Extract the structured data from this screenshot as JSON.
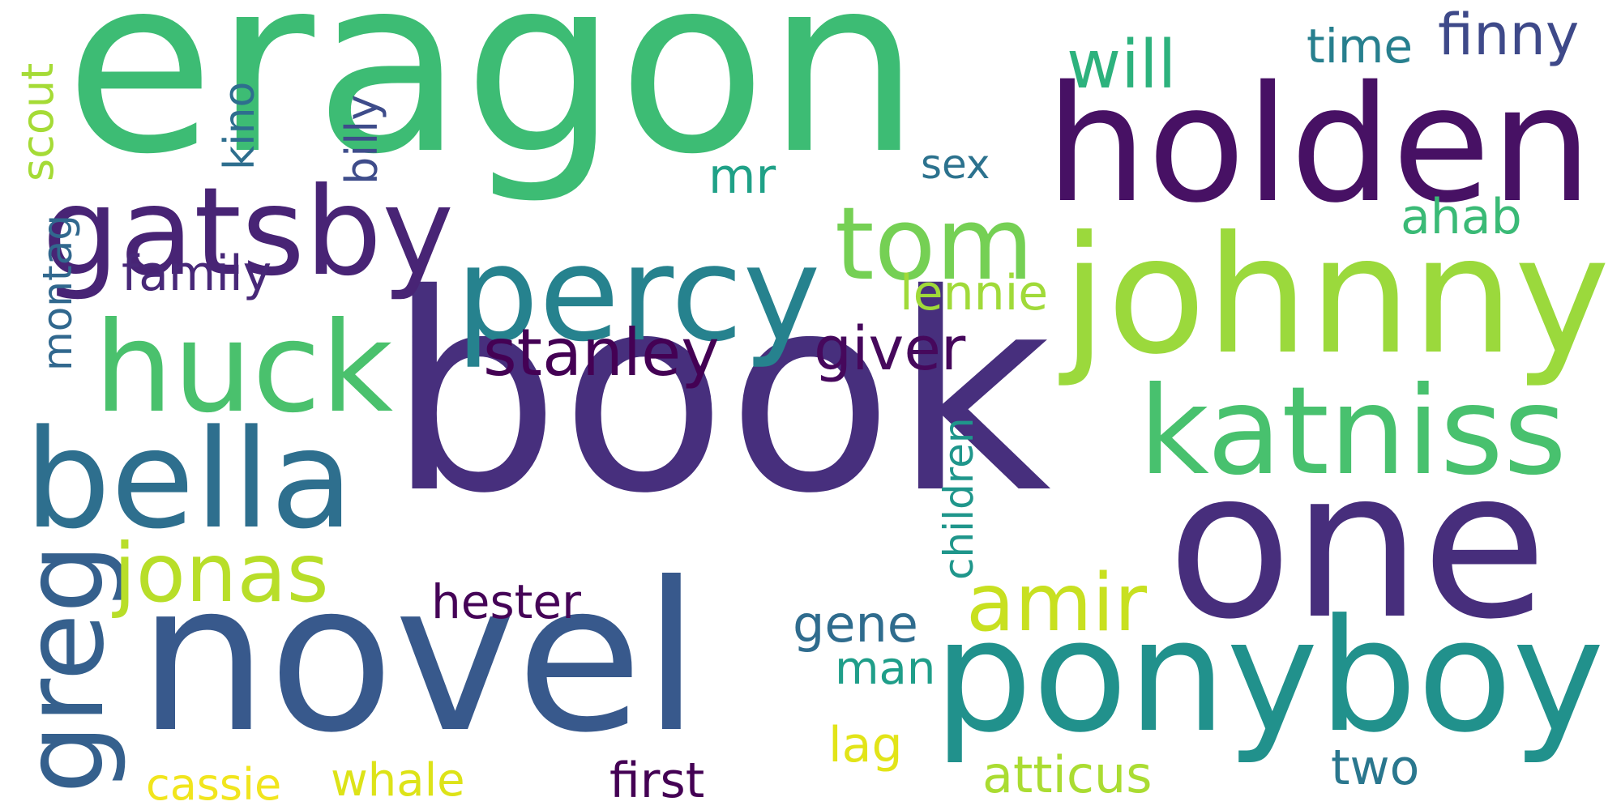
{
  "words": [
    {
      "text": "book",
      "color": "#472f7d"
    },
    {
      "text": "eragon",
      "color": "#3dbc74"
    },
    {
      "text": "novel",
      "color": "#38598c"
    },
    {
      "text": "one",
      "color": "#472e7c"
    },
    {
      "text": "holden",
      "color": "#471164"
    },
    {
      "text": "johnny",
      "color": "#9bd93c"
    },
    {
      "text": "ponyboy",
      "color": "#21918c"
    },
    {
      "text": "percy",
      "color": "#26828e"
    },
    {
      "text": "gatsby",
      "color": "#482475"
    },
    {
      "text": "bella",
      "color": "#2e6f8e"
    },
    {
      "text": "huck",
      "color": "#4ac16d"
    },
    {
      "text": "katniss",
      "color": "#48c16e"
    },
    {
      "text": "tom",
      "color": "#75d054"
    },
    {
      "text": "greg",
      "color": "#35608d"
    },
    {
      "text": "jonas",
      "color": "#b8de29"
    },
    {
      "text": "amir",
      "color": "#c8e020"
    },
    {
      "text": "stanley",
      "color": "#440154"
    },
    {
      "text": "giver",
      "color": "#46085c"
    },
    {
      "text": "will",
      "color": "#2db27d"
    },
    {
      "text": "mr",
      "color": "#1fa187"
    },
    {
      "text": "sex",
      "color": "#2c728e"
    },
    {
      "text": "time",
      "color": "#277f8e"
    },
    {
      "text": "finny",
      "color": "#3e4989"
    },
    {
      "text": "ahab",
      "color": "#3aba76"
    },
    {
      "text": "lennie",
      "color": "#a0da39"
    },
    {
      "text": "family",
      "color": "#482878"
    },
    {
      "text": "hester",
      "color": "#450457"
    },
    {
      "text": "gene",
      "color": "#2f6c8e"
    },
    {
      "text": "man",
      "color": "#1f9e89"
    },
    {
      "text": "lag",
      "color": "#e2e418"
    },
    {
      "text": "cassie",
      "color": "#f1e51d"
    },
    {
      "text": "whale",
      "color": "#dde318"
    },
    {
      "text": "first",
      "color": "#440154"
    },
    {
      "text": "atticus",
      "color": "#aadc32"
    },
    {
      "text": "two",
      "color": "#2a778e"
    },
    {
      "text": "scout",
      "color": "#a5db36"
    },
    {
      "text": "kino",
      "color": "#2e6e8e"
    },
    {
      "text": "billy",
      "color": "#3e4c8a"
    },
    {
      "text": "montag",
      "color": "#31688e"
    },
    {
      "text": "children",
      "color": "#1f968b"
    }
  ]
}
